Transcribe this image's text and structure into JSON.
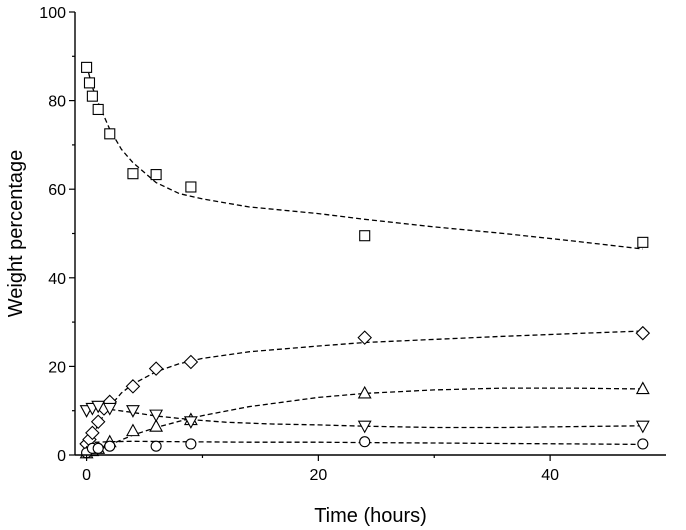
{
  "chart_data": {
    "type": "scatter",
    "xlabel": "Time (hours)",
    "ylabel": "Weight percentage",
    "xlim": [
      -1,
      50
    ],
    "ylim": [
      0,
      100
    ],
    "xticks": [
      0,
      20,
      40
    ],
    "yticks": [
      0,
      20,
      40,
      60,
      80,
      100
    ],
    "grid": false,
    "series": [
      {
        "marker": "square",
        "points": [
          [
            0,
            87.5
          ],
          [
            0.25,
            84
          ],
          [
            0.5,
            81
          ],
          [
            1,
            78
          ],
          [
            2,
            72.5
          ],
          [
            4,
            63.5
          ],
          [
            6,
            63.3
          ],
          [
            9,
            60.5
          ],
          [
            24,
            49.5
          ],
          [
            48,
            48
          ]
        ],
        "fit": [
          [
            0,
            88
          ],
          [
            0.5,
            83
          ],
          [
            1,
            79.5
          ],
          [
            2,
            73.5
          ],
          [
            3,
            69
          ],
          [
            4,
            66
          ],
          [
            6,
            61.5
          ],
          [
            8,
            59
          ],
          [
            10,
            57.8
          ],
          [
            14,
            56
          ],
          [
            20,
            54.5
          ],
          [
            24,
            53.2
          ],
          [
            30,
            51.5
          ],
          [
            36,
            50
          ],
          [
            42,
            48.3
          ],
          [
            48,
            46.5
          ]
        ]
      },
      {
        "marker": "diamond",
        "points": [
          [
            0,
            2.5
          ],
          [
            0.25,
            3.5
          ],
          [
            0.5,
            5
          ],
          [
            1,
            7.5
          ],
          [
            1.5,
            10.5
          ],
          [
            2,
            12
          ],
          [
            4,
            15.5
          ],
          [
            6,
            19.5
          ],
          [
            9,
            21
          ],
          [
            24,
            26.5
          ],
          [
            48,
            27.5
          ]
        ],
        "fit": [
          [
            0,
            1
          ],
          [
            0.5,
            4
          ],
          [
            1,
            7
          ],
          [
            2,
            11
          ],
          [
            3,
            14
          ],
          [
            4,
            16
          ],
          [
            6,
            18.8
          ],
          [
            8,
            20.6
          ],
          [
            10,
            21.8
          ],
          [
            14,
            23.3
          ],
          [
            20,
            24.6
          ],
          [
            24,
            25.4
          ],
          [
            30,
            26.1
          ],
          [
            36,
            26.8
          ],
          [
            42,
            27.4
          ],
          [
            48,
            28
          ]
        ]
      },
      {
        "marker": "triangle-up",
        "points": [
          [
            0,
            0.5
          ],
          [
            0.5,
            1
          ],
          [
            1,
            1.5
          ],
          [
            2,
            3
          ],
          [
            4,
            5.5
          ],
          [
            6,
            6.5
          ],
          [
            9,
            8
          ],
          [
            24,
            14
          ],
          [
            48,
            15
          ]
        ],
        "fit": [
          [
            0,
            0
          ],
          [
            1,
            1
          ],
          [
            2,
            2.3
          ],
          [
            4,
            4.5
          ],
          [
            6,
            6.2
          ],
          [
            8,
            7.6
          ],
          [
            10,
            8.9
          ],
          [
            14,
            10.9
          ],
          [
            20,
            13
          ],
          [
            24,
            13.9
          ],
          [
            30,
            14.7
          ],
          [
            36,
            15.1
          ],
          [
            42,
            15.1
          ],
          [
            48,
            14.9
          ]
        ]
      },
      {
        "marker": "triangle-down",
        "points": [
          [
            0,
            10
          ],
          [
            0.5,
            10.5
          ],
          [
            1,
            11
          ],
          [
            2,
            10.5
          ],
          [
            4,
            10
          ],
          [
            6,
            9
          ],
          [
            9,
            7.5
          ],
          [
            24,
            6.5
          ],
          [
            48,
            6.5
          ]
        ],
        "fit": [
          [
            0,
            11
          ],
          [
            1,
            10.8
          ],
          [
            2,
            10.3
          ],
          [
            4,
            9.6
          ],
          [
            6,
            8.8
          ],
          [
            9,
            8
          ],
          [
            12,
            7.4
          ],
          [
            16,
            7
          ],
          [
            20,
            6.8
          ],
          [
            24,
            6.5
          ],
          [
            30,
            6.2
          ],
          [
            36,
            6.2
          ],
          [
            42,
            6.4
          ],
          [
            48,
            6.6
          ]
        ]
      },
      {
        "marker": "circle",
        "points": [
          [
            0,
            0.5
          ],
          [
            0.5,
            1.5
          ],
          [
            1,
            1.5
          ],
          [
            2,
            2
          ],
          [
            6,
            2
          ],
          [
            9,
            2.5
          ],
          [
            24,
            3
          ],
          [
            48,
            2.5
          ]
        ],
        "fit": [
          [
            0,
            2.8
          ],
          [
            2,
            3
          ],
          [
            4,
            3.1
          ],
          [
            8,
            3
          ],
          [
            14,
            2.9
          ],
          [
            20,
            2.9
          ],
          [
            24,
            2.8
          ],
          [
            30,
            2.7
          ],
          [
            36,
            2.6
          ],
          [
            42,
            2.5
          ],
          [
            48,
            2.4
          ]
        ]
      }
    ]
  }
}
